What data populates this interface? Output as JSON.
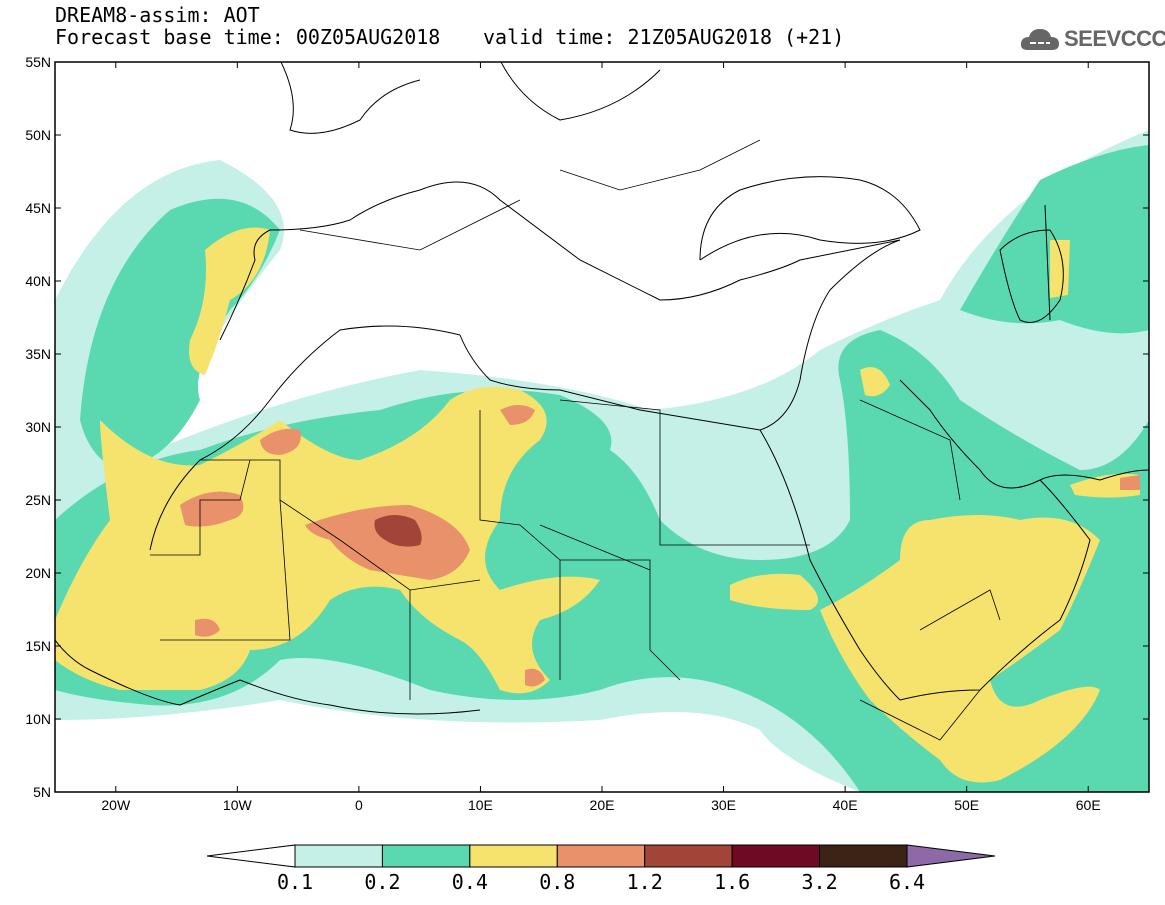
{
  "header": {
    "line1": "DREAM8-assim: AOT",
    "line2": "Forecast base time: 00Z05AUG2018",
    "valid": "valid time: 21Z05AUG2018 (+21)"
  },
  "logo": {
    "text": "SEEVCCC",
    "icon": "cloud-icon"
  },
  "map": {
    "lon_range": [
      -25,
      65
    ],
    "lat_range": [
      5,
      55
    ],
    "lat_ticks": [
      "55N",
      "50N",
      "45N",
      "40N",
      "35N",
      "30N",
      "25N",
      "20N",
      "15N",
      "10N",
      "5N"
    ],
    "lon_ticks": [
      "20W",
      "10W",
      "0",
      "10E",
      "20E",
      "30E",
      "40E",
      "50E",
      "60E"
    ]
  },
  "legend": {
    "labels": [
      "0.1",
      "0.2",
      "0.4",
      "0.8",
      "1.2",
      "1.6",
      "3.2",
      "6.4"
    ],
    "colors": [
      "#ffffff",
      "#c4f0e8",
      "#5ad9b1",
      "#f5e36d",
      "#e8916a",
      "#a34438",
      "#6e0b22",
      "#3b2415",
      "#8e69a8"
    ]
  },
  "colors": {
    "c1": "#c4f0e8",
    "c2": "#5ad9b1",
    "c3": "#f5e36d",
    "c4": "#e8916a",
    "c5": "#a34438",
    "c6": "#6e0b22"
  }
}
